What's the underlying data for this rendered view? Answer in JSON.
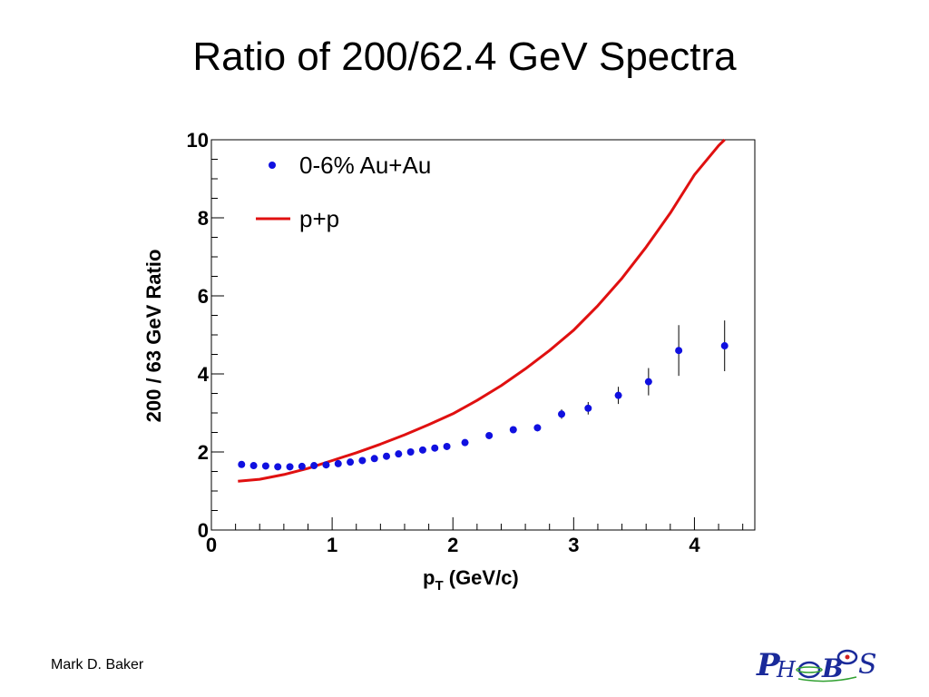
{
  "slide": {
    "title": "Ratio of 200/62.4 GeV Spectra",
    "author": "Mark D. Baker",
    "logo_text": "PHOBOS"
  },
  "colors": {
    "points": "#1010e0",
    "curve": "#e01010",
    "axis": "#000000"
  },
  "chart_data": {
    "type": "scatter",
    "xlabel": "p_T (GeV/c)",
    "xlabel_main": "p",
    "xlabel_sub": "T",
    "xlabel_rest": " (GeV/c)",
    "ylabel": "200 / 63 GeV Ratio",
    "xlim": [
      0,
      4.5
    ],
    "ylim": [
      0,
      10
    ],
    "x_ticks": [
      "0",
      "1",
      "2",
      "3",
      "4"
    ],
    "y_ticks": [
      "0",
      "2",
      "4",
      "6",
      "8",
      "10"
    ],
    "legend": [
      {
        "label": "0-6% Au+Au",
        "marker": "point"
      },
      {
        "label": "p+p",
        "marker": "line"
      }
    ],
    "series": [
      {
        "name": "0-6% Au+Au",
        "kind": "points",
        "x": [
          0.25,
          0.35,
          0.45,
          0.55,
          0.65,
          0.75,
          0.85,
          0.95,
          1.05,
          1.15,
          1.25,
          1.35,
          1.45,
          1.55,
          1.65,
          1.75,
          1.85,
          1.95,
          2.1,
          2.3,
          2.5,
          2.7,
          2.9,
          3.12,
          3.37,
          3.62,
          3.87,
          4.25
        ],
        "y": [
          1.68,
          1.65,
          1.64,
          1.62,
          1.62,
          1.63,
          1.65,
          1.67,
          1.7,
          1.74,
          1.78,
          1.83,
          1.89,
          1.95,
          2.0,
          2.05,
          2.1,
          2.14,
          2.24,
          2.42,
          2.57,
          2.62,
          2.97,
          3.12,
          3.45,
          3.8,
          4.6,
          4.72
        ],
        "yerr": [
          0,
          0,
          0,
          0,
          0,
          0,
          0,
          0,
          0,
          0,
          0,
          0,
          0,
          0,
          0,
          0,
          0,
          0,
          0.05,
          0.06,
          0.07,
          0.09,
          0.12,
          0.16,
          0.22,
          0.35,
          0.65,
          0.65
        ]
      },
      {
        "name": "p+p",
        "kind": "line",
        "x": [
          0.22,
          0.4,
          0.6,
          0.8,
          1.0,
          1.2,
          1.4,
          1.6,
          1.8,
          2.0,
          2.2,
          2.4,
          2.6,
          2.8,
          3.0,
          3.2,
          3.4,
          3.6,
          3.8,
          4.0,
          4.2,
          4.25
        ],
        "y": [
          1.25,
          1.3,
          1.42,
          1.58,
          1.78,
          1.98,
          2.2,
          2.44,
          2.7,
          2.98,
          3.32,
          3.7,
          4.13,
          4.6,
          5.12,
          5.75,
          6.45,
          7.25,
          8.12,
          9.1,
          9.85,
          10.0
        ]
      }
    ]
  }
}
